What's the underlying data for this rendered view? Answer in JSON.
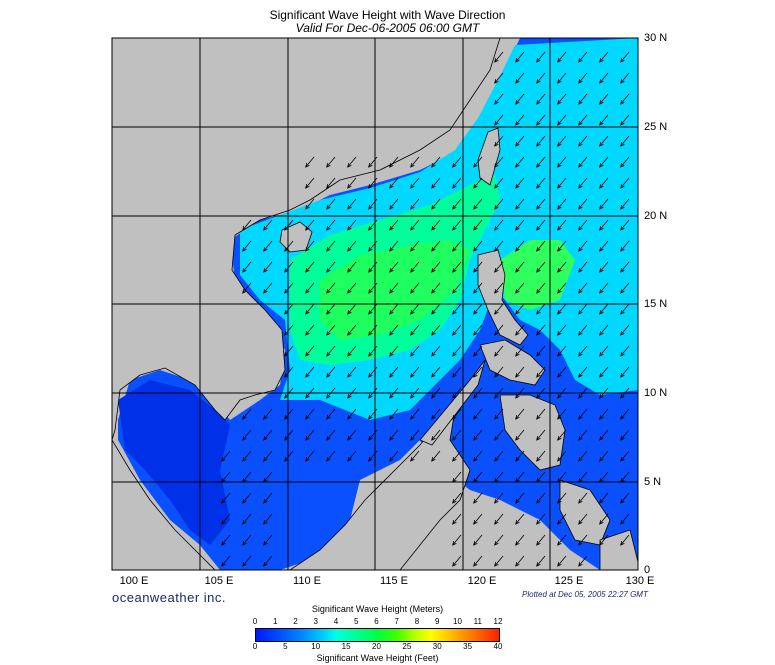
{
  "title": "Significant Wave Height with Wave Direction",
  "subtitle": "Valid For Dec-06-2005 06:00 GMT",
  "lat_labels": [
    "30 N",
    "25 N",
    "20 N",
    "15 N",
    "10 N",
    "5 N",
    "0"
  ],
  "lon_labels": [
    "100 E",
    "105 E",
    "110 E",
    "115 E",
    "120 E",
    "125 E",
    "130 E"
  ],
  "brand": "oceanweather inc.",
  "plotted": "Plotted at Dec 05, 2005 22:27 GMT",
  "colorbar": {
    "title_top": "Significant Wave Height (Meters)",
    "title_bottom": "Significant Wave Height (Feet)",
    "meters": [
      "0",
      "1",
      "2",
      "3",
      "4",
      "5",
      "6",
      "7",
      "8",
      "9",
      "10",
      "11",
      "12"
    ],
    "feet": [
      "0",
      "5",
      "10",
      "15",
      "20",
      "25",
      "30",
      "35",
      "40"
    ]
  },
  "colors": {
    "land": "#c0c0c0",
    "sea_low": "#0018ff",
    "sea_mid": "#00ffe0",
    "sea_high": "#40ff40"
  },
  "map_extent": {
    "lon": [
      100,
      130
    ],
    "lat": [
      0,
      30
    ]
  },
  "wave_direction": "from northeast toward southwest"
}
